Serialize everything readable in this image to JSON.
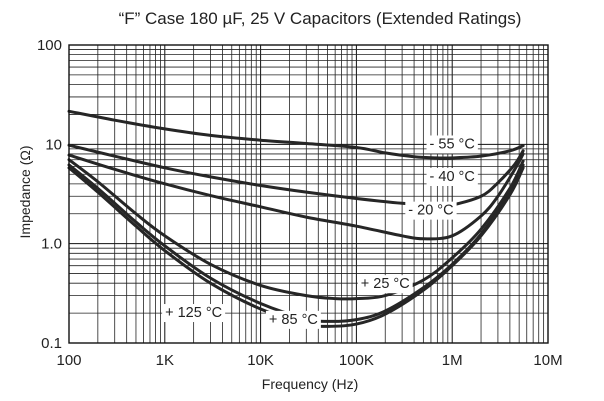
{
  "chart_data": {
    "type": "line",
    "title": "“F” Case 180 µF, 25 V Capacitors (Extended Ratings)",
    "xlabel": "Frequency (Hz)",
    "ylabel": "Impedance (Ω)",
    "x_scale": "log",
    "y_scale": "log",
    "xlim": [
      100,
      10000000
    ],
    "ylim": [
      0.1,
      100
    ],
    "grid": true,
    "x_ticks": [
      {
        "value": 100,
        "label": "100"
      },
      {
        "value": 1000,
        "label": "1K"
      },
      {
        "value": 10000,
        "label": "10K"
      },
      {
        "value": 100000,
        "label": "100K"
      },
      {
        "value": 1000000,
        "label": "1M"
      },
      {
        "value": 10000000,
        "label": "10M"
      }
    ],
    "y_ticks": [
      {
        "value": 0.1,
        "label": "0.1"
      },
      {
        "value": 1,
        "label": "1.0"
      },
      {
        "value": 10,
        "label": "10"
      },
      {
        "value": 100,
        "label": "100"
      }
    ],
    "line_color": "#262626",
    "series": [
      {
        "name": "- 55 °C",
        "label_at": [
          1000000,
          10.2
        ],
        "x": [
          100,
          300,
          1000,
          3000,
          10000,
          30000,
          100000,
          200000,
          400000,
          700000,
          1000000,
          2000000,
          4000000,
          5500000
        ],
        "y": [
          21.5,
          17.5,
          14.3,
          12.3,
          11.0,
          10.2,
          9.3,
          8.2,
          7.5,
          7.3,
          7.3,
          7.6,
          8.6,
          9.7
        ]
      },
      {
        "name": "- 40 °C",
        "label_at": [
          1000000,
          4.8
        ],
        "x": [
          100,
          300,
          1000,
          3000,
          10000,
          30000,
          100000,
          300000,
          700000,
          1000000,
          2000000,
          3000000,
          4500000,
          5500000
        ],
        "y": [
          9.8,
          7.6,
          5.8,
          4.7,
          3.85,
          3.3,
          2.85,
          2.55,
          2.45,
          2.45,
          3.0,
          4.1,
          6.3,
          8.6
        ]
      },
      {
        "name": "- 20 °C",
        "label_at": [
          600000,
          2.2
        ],
        "x": [
          100,
          300,
          1000,
          3000,
          10000,
          30000,
          100000,
          300000,
          500000,
          1000000,
          2000000,
          3000000,
          4500000,
          5500000
        ],
        "y": [
          7.8,
          5.6,
          4.0,
          3.05,
          2.35,
          1.85,
          1.5,
          1.2,
          1.12,
          1.2,
          1.9,
          3.0,
          5.6,
          8.0
        ]
      },
      {
        "name": "+ 25 °C",
        "label_at": [
          200000,
          0.4
        ],
        "x": [
          100,
          200,
          500,
          1000,
          3000,
          10000,
          30000,
          60000,
          100000,
          200000,
          500000,
          1000000,
          2000000,
          4000000,
          5500000
        ],
        "y": [
          7.0,
          4.2,
          2.0,
          1.2,
          0.62,
          0.38,
          0.3,
          0.28,
          0.28,
          0.3,
          0.43,
          0.72,
          1.4,
          3.6,
          6.8
        ]
      },
      {
        "name": "+ 85 °C",
        "label_at": [
          22000,
          0.175
        ],
        "x": [
          100,
          200,
          500,
          1000,
          3000,
          10000,
          30000,
          50000,
          100000,
          200000,
          500000,
          1000000,
          2000000,
          4000000,
          5500000
        ],
        "y": [
          6.2,
          3.6,
          1.65,
          0.95,
          0.45,
          0.25,
          0.175,
          0.165,
          0.172,
          0.21,
          0.36,
          0.62,
          1.25,
          3.3,
          6.2
        ]
      },
      {
        "name": "+ 125 °C",
        "label_at": [
          2000,
          0.205
        ],
        "x": [
          100,
          200,
          500,
          1000,
          3000,
          10000,
          30000,
          50000,
          100000,
          200000,
          500000,
          1000000,
          2000000,
          4000000,
          5500000
        ],
        "y": [
          5.8,
          3.3,
          1.5,
          0.85,
          0.4,
          0.22,
          0.155,
          0.147,
          0.155,
          0.195,
          0.34,
          0.6,
          1.2,
          3.1,
          5.8
        ]
      }
    ]
  }
}
